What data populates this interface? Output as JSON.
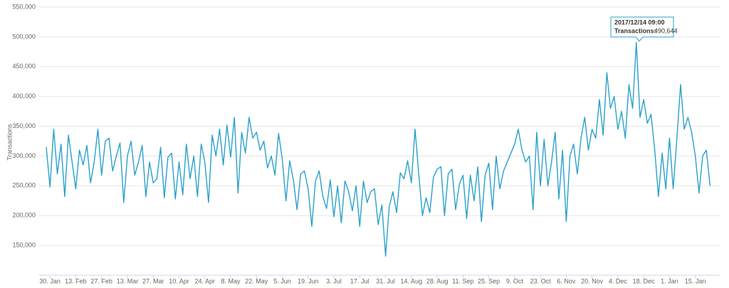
{
  "chart_data": {
    "type": "line",
    "y_label": "Transactions",
    "categories": [
      null,
      "30. Jan",
      null,
      null,
      null,
      null,
      null,
      null,
      "13. Feb",
      null,
      null,
      null,
      null,
      null,
      null,
      "27. Feb",
      null,
      null,
      null,
      null,
      null,
      null,
      "13. Mar",
      null,
      null,
      null,
      null,
      null,
      null,
      "27. Mar",
      null,
      null,
      null,
      null,
      null,
      null,
      "10. Apr",
      null,
      null,
      null,
      null,
      null,
      null,
      "24. Apr",
      null,
      null,
      null,
      null,
      null,
      null,
      "8. May",
      null,
      null,
      null,
      null,
      null,
      null,
      "22. May",
      null,
      null,
      null,
      null,
      null,
      null,
      "5. Jun",
      null,
      null,
      null,
      null,
      null,
      null,
      "19. Jun",
      null,
      null,
      null,
      null,
      null,
      null,
      "3. Jul",
      null,
      null,
      null,
      null,
      null,
      null,
      "17. Jul",
      null,
      null,
      null,
      null,
      null,
      null,
      "31. Jul",
      null,
      null,
      null,
      null,
      null,
      null,
      "14. Aug",
      null,
      null,
      null,
      null,
      null,
      null,
      "28. Aug",
      null,
      null,
      null,
      null,
      null,
      null,
      "11. Sep",
      null,
      null,
      null,
      null,
      null,
      null,
      "25. Sep",
      null,
      null,
      null,
      null,
      null,
      null,
      "9. Oct",
      null,
      null,
      null,
      null,
      null,
      null,
      "23. Oct",
      null,
      null,
      null,
      null,
      null,
      null,
      "6. Nov",
      null,
      null,
      null,
      null,
      null,
      null,
      "20. Nov",
      null,
      null,
      null,
      null,
      null,
      null,
      "4. Dec",
      null,
      null,
      null,
      null,
      null,
      null,
      "18. Dec",
      null,
      null,
      null,
      null,
      null,
      null,
      "1. Jan",
      null,
      null,
      null,
      null,
      null,
      null,
      "15. Jan",
      null,
      null,
      null,
      null
    ],
    "series": [
      {
        "name": "Transactions",
        "color": "#2aa1cb",
        "values": [
          315000,
          248000,
          345000,
          270000,
          320000,
          232000,
          335000,
          290000,
          245000,
          310000,
          285000,
          318000,
          255000,
          290000,
          345000,
          268000,
          325000,
          330000,
          275000,
          300000,
          322000,
          222000,
          300000,
          325000,
          268000,
          290000,
          318000,
          232000,
          290000,
          255000,
          262000,
          315000,
          230000,
          298000,
          305000,
          228000,
          290000,
          235000,
          320000,
          262000,
          300000,
          232000,
          320000,
          290000,
          222000,
          335000,
          300000,
          345000,
          285000,
          352000,
          298000,
          365000,
          238000,
          340000,
          305000,
          365000,
          330000,
          340000,
          310000,
          325000,
          280000,
          300000,
          268000,
          338000,
          295000,
          225000,
          292000,
          260000,
          210000,
          270000,
          275000,
          245000,
          182000,
          258000,
          275000,
          232000,
          212000,
          260000,
          198000,
          250000,
          188000,
          258000,
          240000,
          208000,
          250000,
          182000,
          258000,
          222000,
          240000,
          245000,
          185000,
          218000,
          132000,
          215000,
          240000,
          205000,
          272000,
          262000,
          292000,
          255000,
          345000,
          270000,
          200000,
          230000,
          205000,
          265000,
          278000,
          282000,
          200000,
          270000,
          278000,
          210000,
          252000,
          268000,
          195000,
          268000,
          225000,
          282000,
          190000,
          268000,
          288000,
          210000,
          300000,
          245000,
          275000,
          290000,
          305000,
          320000,
          345000,
          310000,
          290000,
          300000,
          210000,
          340000,
          250000,
          328000,
          250000,
          290000,
          340000,
          228000,
          310000,
          190000,
          300000,
          320000,
          270000,
          330000,
          365000,
          310000,
          345000,
          330000,
          395000,
          335000,
          440000,
          380000,
          400000,
          345000,
          375000,
          330000,
          420000,
          380000,
          490644,
          365000,
          395000,
          355000,
          370000,
          310000,
          232000,
          305000,
          245000,
          330000,
          245000,
          330000,
          420000,
          345000,
          365000,
          340000,
          300000,
          238000,
          300000,
          310000,
          250000
        ]
      }
    ],
    "ylim": [
      100000,
      550000
    ],
    "yticks": [
      {
        "value": 150000,
        "label": "150,000"
      },
      {
        "value": 200000,
        "label": "200,000"
      },
      {
        "value": 250000,
        "label": "250,000"
      },
      {
        "value": 300000,
        "label": "300,000"
      },
      {
        "value": 350000,
        "label": "350,000"
      },
      {
        "value": 400000,
        "label": "400,000"
      },
      {
        "value": 450000,
        "label": "450,000"
      },
      {
        "value": 500000,
        "label": "500,000"
      },
      {
        "value": 550000,
        "label": "550,000"
      }
    ],
    "grid": true,
    "tooltip": {
      "title": "2017/12/14 09:00",
      "label": "Transactions:",
      "value": "490,644"
    }
  }
}
